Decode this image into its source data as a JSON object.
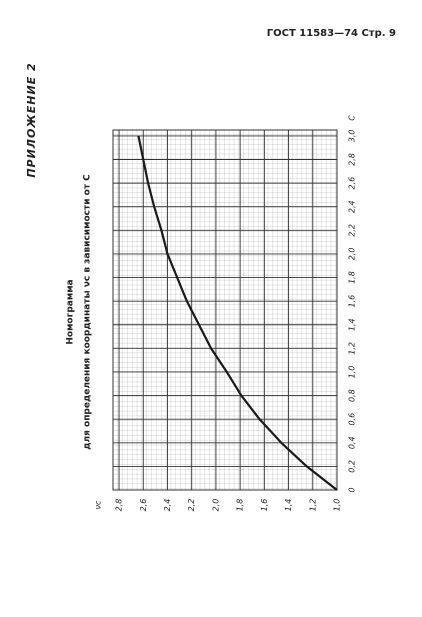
{
  "header": "ГОСТ 11583—74 Стр. 9",
  "appendix": "ПРИЛОЖЕНИЕ 2",
  "chart_data": {
    "type": "line",
    "title": "Номограмма",
    "subtitle": "для определения координаты νc в зависимости от C",
    "x_label": "C",
    "y_label": "νc",
    "xlim": [
      0,
      3.05
    ],
    "ylim": [
      1.0,
      2.85
    ],
    "xticks": [
      0,
      {
        "value": 0.2,
        "label": "0,2"
      },
      {
        "value": 0.4,
        "label": "0,4"
      },
      {
        "value": 0.6,
        "label": "0,6"
      },
      {
        "value": 0.8,
        "label": "0,8"
      },
      {
        "value": 1.0,
        "label": "1,0"
      },
      {
        "value": 1.2,
        "label": "1,2"
      },
      {
        "value": 1.4,
        "label": "1,4"
      },
      {
        "value": 1.6,
        "label": "1,6"
      },
      {
        "value": 1.8,
        "label": "1,8"
      },
      {
        "value": 2.0,
        "label": "2,0"
      },
      {
        "value": 2.2,
        "label": "2,2"
      },
      {
        "value": 2.4,
        "label": "2,4"
      },
      {
        "value": 2.6,
        "label": "2,6"
      },
      {
        "value": 2.8,
        "label": "2,8"
      },
      {
        "value": 3.0,
        "label": "3,0"
      }
    ],
    "yticks": [
      {
        "value": 1.0,
        "label": "1,0"
      },
      {
        "value": 1.2,
        "label": "1,2"
      },
      {
        "value": 1.4,
        "label": "1,4"
      },
      {
        "value": 1.6,
        "label": "1,6"
      },
      {
        "value": 1.8,
        "label": "1,8"
      },
      {
        "value": 2.0,
        "label": "2,0"
      },
      {
        "value": 2.2,
        "label": "2,2"
      },
      {
        "value": 2.4,
        "label": "2,4"
      },
      {
        "value": 2.6,
        "label": "2,6"
      },
      {
        "value": 2.8,
        "label": "2,8"
      }
    ],
    "grid": true,
    "x": [
      0,
      0.2,
      0.4,
      0.6,
      0.8,
      1.0,
      1.2,
      1.4,
      1.6,
      1.8,
      2.0,
      2.2,
      2.4,
      2.6,
      2.8,
      3.0
    ],
    "series": [
      {
        "color": "#1a1a1a",
        "values": [
          1.0,
          1.25,
          1.46,
          1.64,
          1.79,
          1.91,
          2.04,
          2.14,
          2.24,
          2.32,
          2.4,
          2.45,
          2.51,
          2.56,
          2.6,
          2.64
        ]
      }
    ]
  }
}
